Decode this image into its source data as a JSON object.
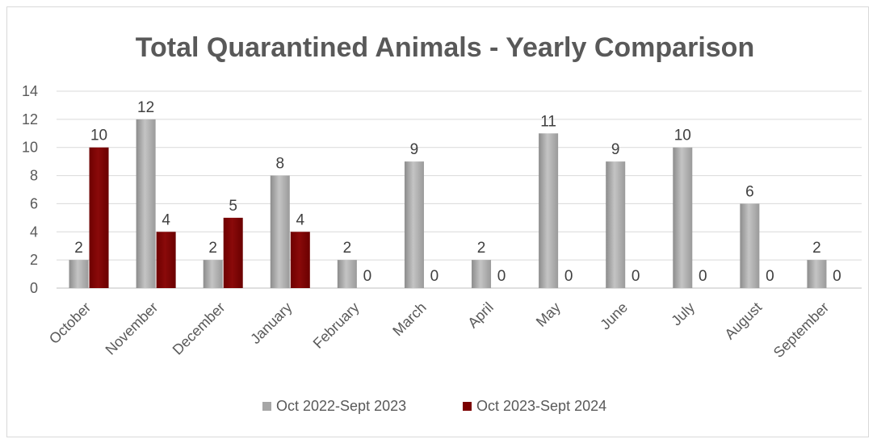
{
  "chart_data": {
    "type": "bar",
    "title": "Total Quarantined Animals - Yearly Comparison",
    "categories": [
      "October",
      "November",
      "December",
      "January",
      "February",
      "March",
      "April",
      "May",
      "June",
      "July",
      "August",
      "September"
    ],
    "series": [
      {
        "name": "Oct 2022-Sept 2023",
        "color": "#a6a6a6",
        "values": [
          2,
          12,
          2,
          8,
          2,
          9,
          2,
          11,
          9,
          10,
          6,
          2
        ]
      },
      {
        "name": "Oct 2023-Sept 2024",
        "color": "#7b0000",
        "values": [
          10,
          4,
          5,
          4,
          0,
          0,
          0,
          0,
          0,
          0,
          0,
          0
        ]
      }
    ],
    "ylim": [
      0,
      14
    ],
    "yticks": [
      0,
      2,
      4,
      6,
      8,
      10,
      12,
      14
    ],
    "grid": true,
    "legend_position": "bottom",
    "data_labels": true
  }
}
